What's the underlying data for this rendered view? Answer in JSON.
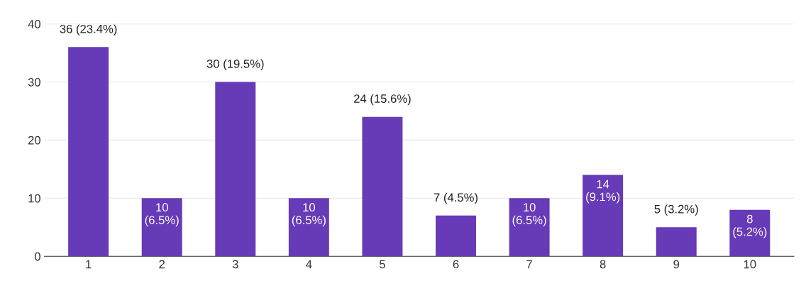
{
  "chart_data": {
    "type": "bar",
    "categories": [
      "1",
      "2",
      "3",
      "4",
      "5",
      "6",
      "7",
      "8",
      "9",
      "10"
    ],
    "values": [
      36,
      10,
      30,
      10,
      24,
      7,
      10,
      14,
      5,
      8
    ],
    "value_labels": [
      "36 (23.4%)",
      "10\n(6.5%)",
      "30 (19.5%)",
      "10\n(6.5%)",
      "24 (15.6%)",
      "7 (4.5%)",
      "10\n(6.5%)",
      "14\n(9.1%)",
      "5 (3.2%)",
      "8\n(5.2%)"
    ],
    "color": "#673ab7",
    "ylim": [
      0,
      40
    ],
    "yticks": [
      0,
      10,
      20,
      30,
      40
    ],
    "grid": "y",
    "legend": false
  }
}
